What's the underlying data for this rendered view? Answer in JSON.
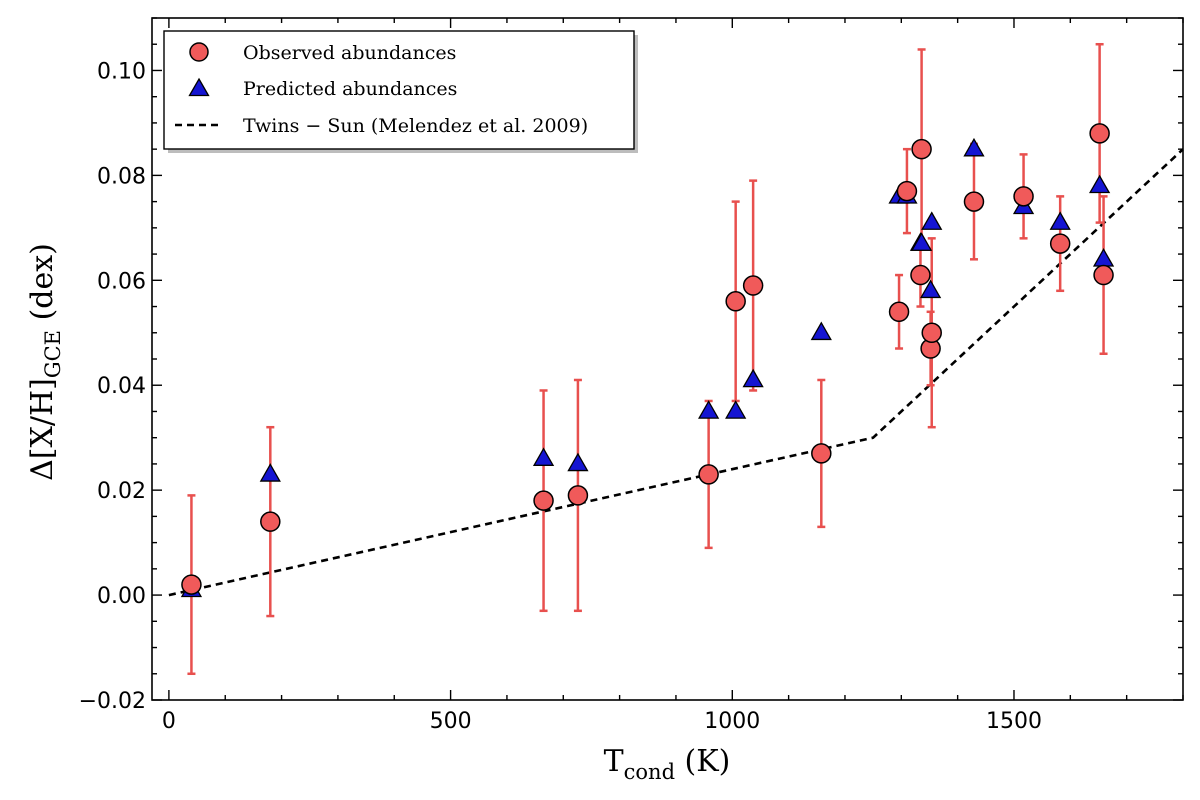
{
  "chart_data": {
    "type": "scatter",
    "title": "",
    "xlabel": {
      "main": "T",
      "sub": "cond",
      "unit": " (K)"
    },
    "ylabel": {
      "pre": "Δ[X/H]",
      "sub": "GCE",
      "post": " (dex)"
    },
    "xlim": [
      -30,
      1800
    ],
    "ylim": [
      -0.02,
      0.11
    ],
    "xticks": [
      0,
      500,
      1000,
      1500
    ],
    "xtick_labels": [
      "0",
      "500",
      "1000",
      "1500"
    ],
    "yticks": [
      -0.02,
      0.0,
      0.02,
      0.04,
      0.06,
      0.08,
      0.1
    ],
    "ytick_labels": [
      "−0.02",
      "0.00",
      "0.02",
      "0.04",
      "0.06",
      "0.08",
      "0.10"
    ],
    "grid": false,
    "legend": {
      "placement": "top-left",
      "entries": [
        {
          "label": "Observed abundances",
          "marker": "circle"
        },
        {
          "label": "Predicted abundances",
          "marker": "triangle"
        },
        {
          "label": "Twins − Sun (Melendez et al. 2009)",
          "marker": "dashed-line"
        }
      ]
    },
    "colors": {
      "observed_fill": "#f05a5a",
      "errorbar": "#e8504e",
      "predicted_fill": "#1515d2",
      "trend": "#000000"
    },
    "series": [
      {
        "name": "Observed abundances",
        "marker": "circle",
        "points": [
          {
            "x": 40,
            "y": 0.002,
            "err": 0.017
          },
          {
            "x": 180,
            "y": 0.014,
            "err": 0.018
          },
          {
            "x": 665,
            "y": 0.018,
            "err": 0.021
          },
          {
            "x": 726,
            "y": 0.019,
            "err": 0.022
          },
          {
            "x": 958,
            "y": 0.023,
            "err": 0.014
          },
          {
            "x": 1006,
            "y": 0.056,
            "err": 0.019
          },
          {
            "x": 1037,
            "y": 0.059,
            "err": 0.02
          },
          {
            "x": 1158,
            "y": 0.027,
            "err": 0.014
          },
          {
            "x": 1296,
            "y": 0.054,
            "err": 0.007
          },
          {
            "x": 1310,
            "y": 0.077,
            "err": 0.008
          },
          {
            "x": 1334,
            "y": 0.061,
            "err": 0.006
          },
          {
            "x": 1336,
            "y": 0.085,
            "err": 0.019
          },
          {
            "x": 1352,
            "y": 0.047,
            "err": 0.007
          },
          {
            "x": 1354,
            "y": 0.05,
            "err": 0.018
          },
          {
            "x": 1429,
            "y": 0.075,
            "err": 0.011
          },
          {
            "x": 1517,
            "y": 0.076,
            "err": 0.008
          },
          {
            "x": 1582,
            "y": 0.067,
            "err": 0.009
          },
          {
            "x": 1652,
            "y": 0.088,
            "err": 0.017
          },
          {
            "x": 1659,
            "y": 0.061,
            "err": 0.015
          }
        ]
      },
      {
        "name": "Predicted abundances",
        "marker": "triangle",
        "points": [
          {
            "x": 40,
            "y": 0.001
          },
          {
            "x": 180,
            "y": 0.023
          },
          {
            "x": 665,
            "y": 0.026
          },
          {
            "x": 726,
            "y": 0.025
          },
          {
            "x": 958,
            "y": 0.035
          },
          {
            "x": 1006,
            "y": 0.035
          },
          {
            "x": 1037,
            "y": 0.041
          },
          {
            "x": 1158,
            "y": 0.05
          },
          {
            "x": 1296,
            "y": 0.076
          },
          {
            "x": 1310,
            "y": 0.076
          },
          {
            "x": 1334,
            "y": 0.067
          },
          {
            "x": 1336,
            "y": 0.067
          },
          {
            "x": 1352,
            "y": 0.058
          },
          {
            "x": 1354,
            "y": 0.071
          },
          {
            "x": 1429,
            "y": 0.085
          },
          {
            "x": 1517,
            "y": 0.074
          },
          {
            "x": 1582,
            "y": 0.071
          },
          {
            "x": 1652,
            "y": 0.078
          },
          {
            "x": 1659,
            "y": 0.064
          }
        ]
      },
      {
        "name": "Twins − Sun (Melendez et al. 2009)",
        "type": "line",
        "style": "dashed",
        "x": [
          0,
          1250,
          1800
        ],
        "y": [
          0.0,
          0.03,
          0.085
        ]
      }
    ]
  }
}
